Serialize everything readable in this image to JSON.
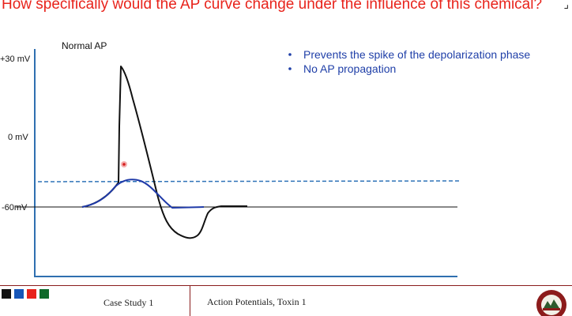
{
  "slide": {
    "question": "How specifically would the AP curve change under the influence of this chemical?"
  },
  "diagram": {
    "title": "Normal AP",
    "y_labels": [
      "+30 mV",
      "0 mV",
      "-60mV"
    ],
    "bullets": [
      "Prevents the spike of the depolarization phase",
      "No AP propagation"
    ],
    "colors": {
      "normal_ap": "#111111",
      "toxin_ap": "#1f3aa8",
      "threshold": "#2f73b8",
      "axis": "#2f6fb0",
      "bullet_text": "#1f3fa8"
    }
  },
  "footer": {
    "left": "Case Study 1",
    "right": "Action Potentials, Toxin 1",
    "swatch_colors": [
      "#111111",
      "#1656b8",
      "#e8231b",
      "#0f6a2a"
    ]
  }
}
